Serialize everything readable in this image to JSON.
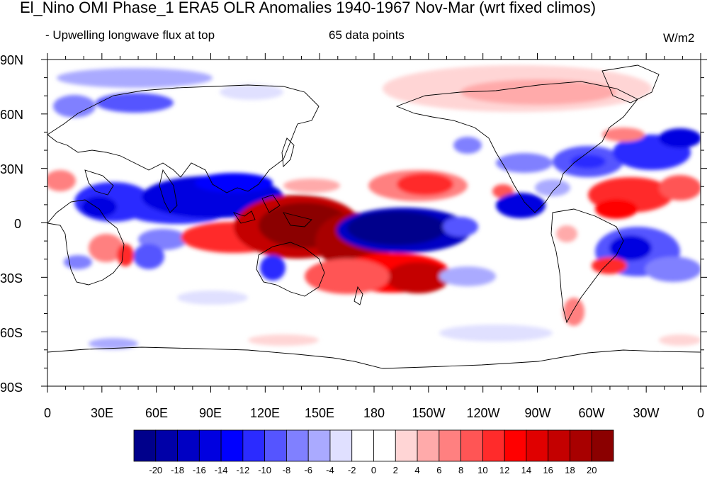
{
  "title": "El_Nino OMI Phase_1 ERA5 OLR Anomalies 1940-1967 Nov-Mar (wrt fixed climos)",
  "subtitle_left": "- Upwelling longwave flux at top",
  "subtitle_center": "65 data points",
  "units": "W/m2",
  "lat_labels": [
    "90N",
    "60N",
    "30N",
    "0",
    "30S",
    "60S",
    "90S"
  ],
  "lon_labels": [
    "0",
    "30E",
    "60E",
    "90E",
    "120E",
    "150E",
    "180",
    "150W",
    "120W",
    "90W",
    "60W",
    "30W",
    "0"
  ],
  "colorbar": {
    "labels": [
      "-20",
      "-18",
      "-16",
      "-14",
      "-12",
      "-10",
      "-8",
      "-6",
      "-4",
      "-2",
      "0",
      "2",
      "4",
      "6",
      "8",
      "10",
      "12",
      "14",
      "16",
      "18",
      "20"
    ],
    "colors": [
      "#00008b",
      "#0000a8",
      "#0000c4",
      "#0000e0",
      "#0000ff",
      "#2b2bff",
      "#5555ff",
      "#8080ff",
      "#aaaaff",
      "#e0e0ff",
      "#ffffff",
      "#ffffff",
      "#ffd5d5",
      "#ffaaaa",
      "#ff8080",
      "#ff5555",
      "#ff2b2b",
      "#ff0000",
      "#e00000",
      "#c40000",
      "#a80000",
      "#8b0000"
    ]
  },
  "map_colors": {
    "land_line": "#000000",
    "frame": "#000000"
  }
}
